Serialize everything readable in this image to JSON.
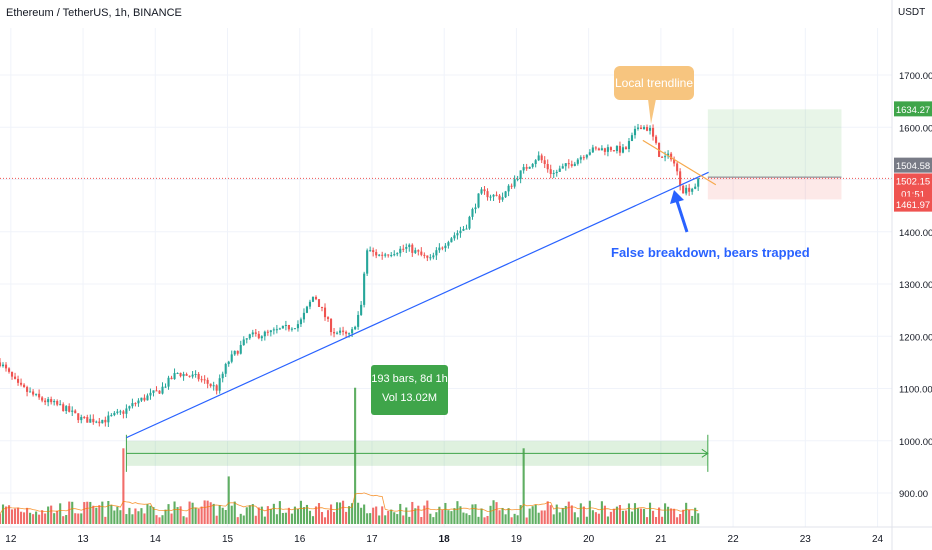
{
  "chart_data": {
    "type": "candlestick",
    "title": "Ethereum / TetherUS, 1h, BINANCE",
    "y_unit": "USDT",
    "y_ticks": [
      "1700.00",
      "1600.00",
      "1500.00",
      "1400.00",
      "1300.00",
      "1200.00",
      "1100.00",
      "1000.00",
      "900.00"
    ],
    "y_tick_values": [
      1700,
      1600,
      1500,
      1400,
      1300,
      1200,
      1100,
      1000,
      900
    ],
    "x_ticks": [
      "12",
      "13",
      "14",
      "15",
      "16",
      "17",
      "18",
      "19",
      "20",
      "21",
      "22",
      "23",
      "24"
    ],
    "x_tick_days": [
      12,
      13,
      14,
      15,
      16,
      17,
      18,
      19,
      20,
      21,
      22,
      23,
      24
    ],
    "bold_x_tick": "18",
    "xlim_days": [
      11.85,
      24.2
    ],
    "ylim": [
      835,
      1790
    ],
    "grid": true,
    "price_path_days": [
      11.85,
      12.1,
      12.4,
      12.7,
      13.0,
      13.3,
      13.55,
      13.75,
      14.05,
      14.3,
      14.6,
      14.85,
      15.0,
      15.3,
      15.55,
      15.8,
      16.0,
      16.2,
      16.45,
      16.7,
      16.85,
      16.92,
      17.1,
      17.5,
      17.8,
      18.05,
      18.3,
      18.5,
      18.8,
      19.0,
      19.3,
      19.5,
      19.8,
      20.0,
      20.3,
      20.5,
      20.7,
      20.85,
      21.0,
      21.15,
      21.3,
      21.45,
      21.55
    ],
    "price_path_values": [
      1150,
      1105,
      1080,
      1065,
      1040,
      1040,
      1055,
      1075,
      1095,
      1130,
      1120,
      1100,
      1150,
      1200,
      1205,
      1215,
      1225,
      1280,
      1210,
      1200,
      1255,
      1365,
      1355,
      1370,
      1345,
      1385,
      1410,
      1475,
      1465,
      1505,
      1545,
      1510,
      1535,
      1555,
      1560,
      1555,
      1605,
      1595,
      1540,
      1545,
      1480,
      1485,
      1502.15
    ],
    "last_price": 1502.15,
    "last_price_label": "1502.15",
    "countdown": "01:51",
    "trendline": {
      "from": [
        13.6,
        1006
      ],
      "to": [
        21.55,
        1508
      ],
      "color": "#2962ff"
    },
    "local_trendline": {
      "from": [
        20.75,
        1575
      ],
      "to": [
        21.65,
        1490
      ],
      "color": "#f6a94c"
    },
    "annotations": [
      {
        "text": "Local trendline",
        "color": "#f7c57f"
      },
      {
        "text": "False breakdown, bears trapped",
        "color": "#2962ff"
      }
    ],
    "measure": {
      "line1": "193 bars, 8d 1h",
      "line2": "Vol 13.02M",
      "from_day": 13.6,
      "to_day": 21.65,
      "y_top": 1000,
      "y_bottom": 952,
      "color": "#3fa54a"
    },
    "position": {
      "from_day": 21.65,
      "to_day": 23.5,
      "entry": 1504.58,
      "target": 1634.27,
      "stop": 1461.97,
      "entry_label": "1504.58",
      "target_label": "1634.27",
      "stop_label": "1461.97"
    },
    "volume": {
      "ylim": [
        0,
        13.5
      ],
      "spikes": [
        {
          "day": 13.55,
          "value": 7.0,
          "color": "#ef5350"
        },
        {
          "day": 16.75,
          "value": 12.6,
          "color": "#43a047"
        },
        {
          "day": 19.1,
          "value": 7.0,
          "color": "#ef5350"
        },
        {
          "day": 15.0,
          "value": 4.4,
          "color": "#43a047"
        }
      ]
    },
    "colors": {
      "up": "#26a69a",
      "up_bar": "#43a047",
      "down": "#ef5350",
      "grid": "#f0f3fa",
      "axis_text": "#131722"
    }
  }
}
